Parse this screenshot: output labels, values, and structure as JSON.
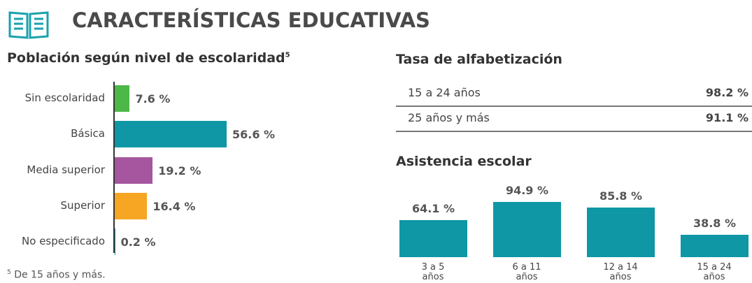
{
  "header": {
    "title": "CARACTERÍSTICAS EDUCATIVAS"
  },
  "chart_data": [
    {
      "type": "bar",
      "orientation": "horizontal",
      "title": "Población según nivel de escolaridad",
      "title_note": "5",
      "categories": [
        "Sin escolaridad",
        "Básica",
        "Media superior",
        "Superior",
        "No especificado"
      ],
      "values": [
        7.6,
        56.6,
        19.2,
        16.4,
        0.2
      ],
      "value_labels": [
        "7.6 %",
        "56.6 %",
        "19.2 %",
        "16.4 %",
        "0.2 %"
      ],
      "colors": [
        "#4cb848",
        "#0f97a5",
        "#a5569e",
        "#f6a623",
        "#0f97a5"
      ]
    },
    {
      "type": "bar",
      "orientation": "vertical",
      "title": "Asistencia escolar",
      "categories": [
        "3 a 5 años",
        "6 a 11 años",
        "12 a 14 años",
        "15 a 24 años"
      ],
      "values": [
        64.1,
        94.9,
        85.8,
        38.8
      ],
      "value_labels": [
        "64.1 %",
        "94.9 %",
        "85.8 %",
        "38.8 %"
      ],
      "color": "#0f97a5"
    }
  ],
  "literacy": {
    "title": "Tasa de alfabetización",
    "rows": [
      [
        "15 a 24 años",
        "98.2 %"
      ],
      [
        "25 años y más",
        "91.1 %"
      ]
    ]
  },
  "footnote": {
    "marker": "5",
    "text": "De 15 años y más."
  }
}
